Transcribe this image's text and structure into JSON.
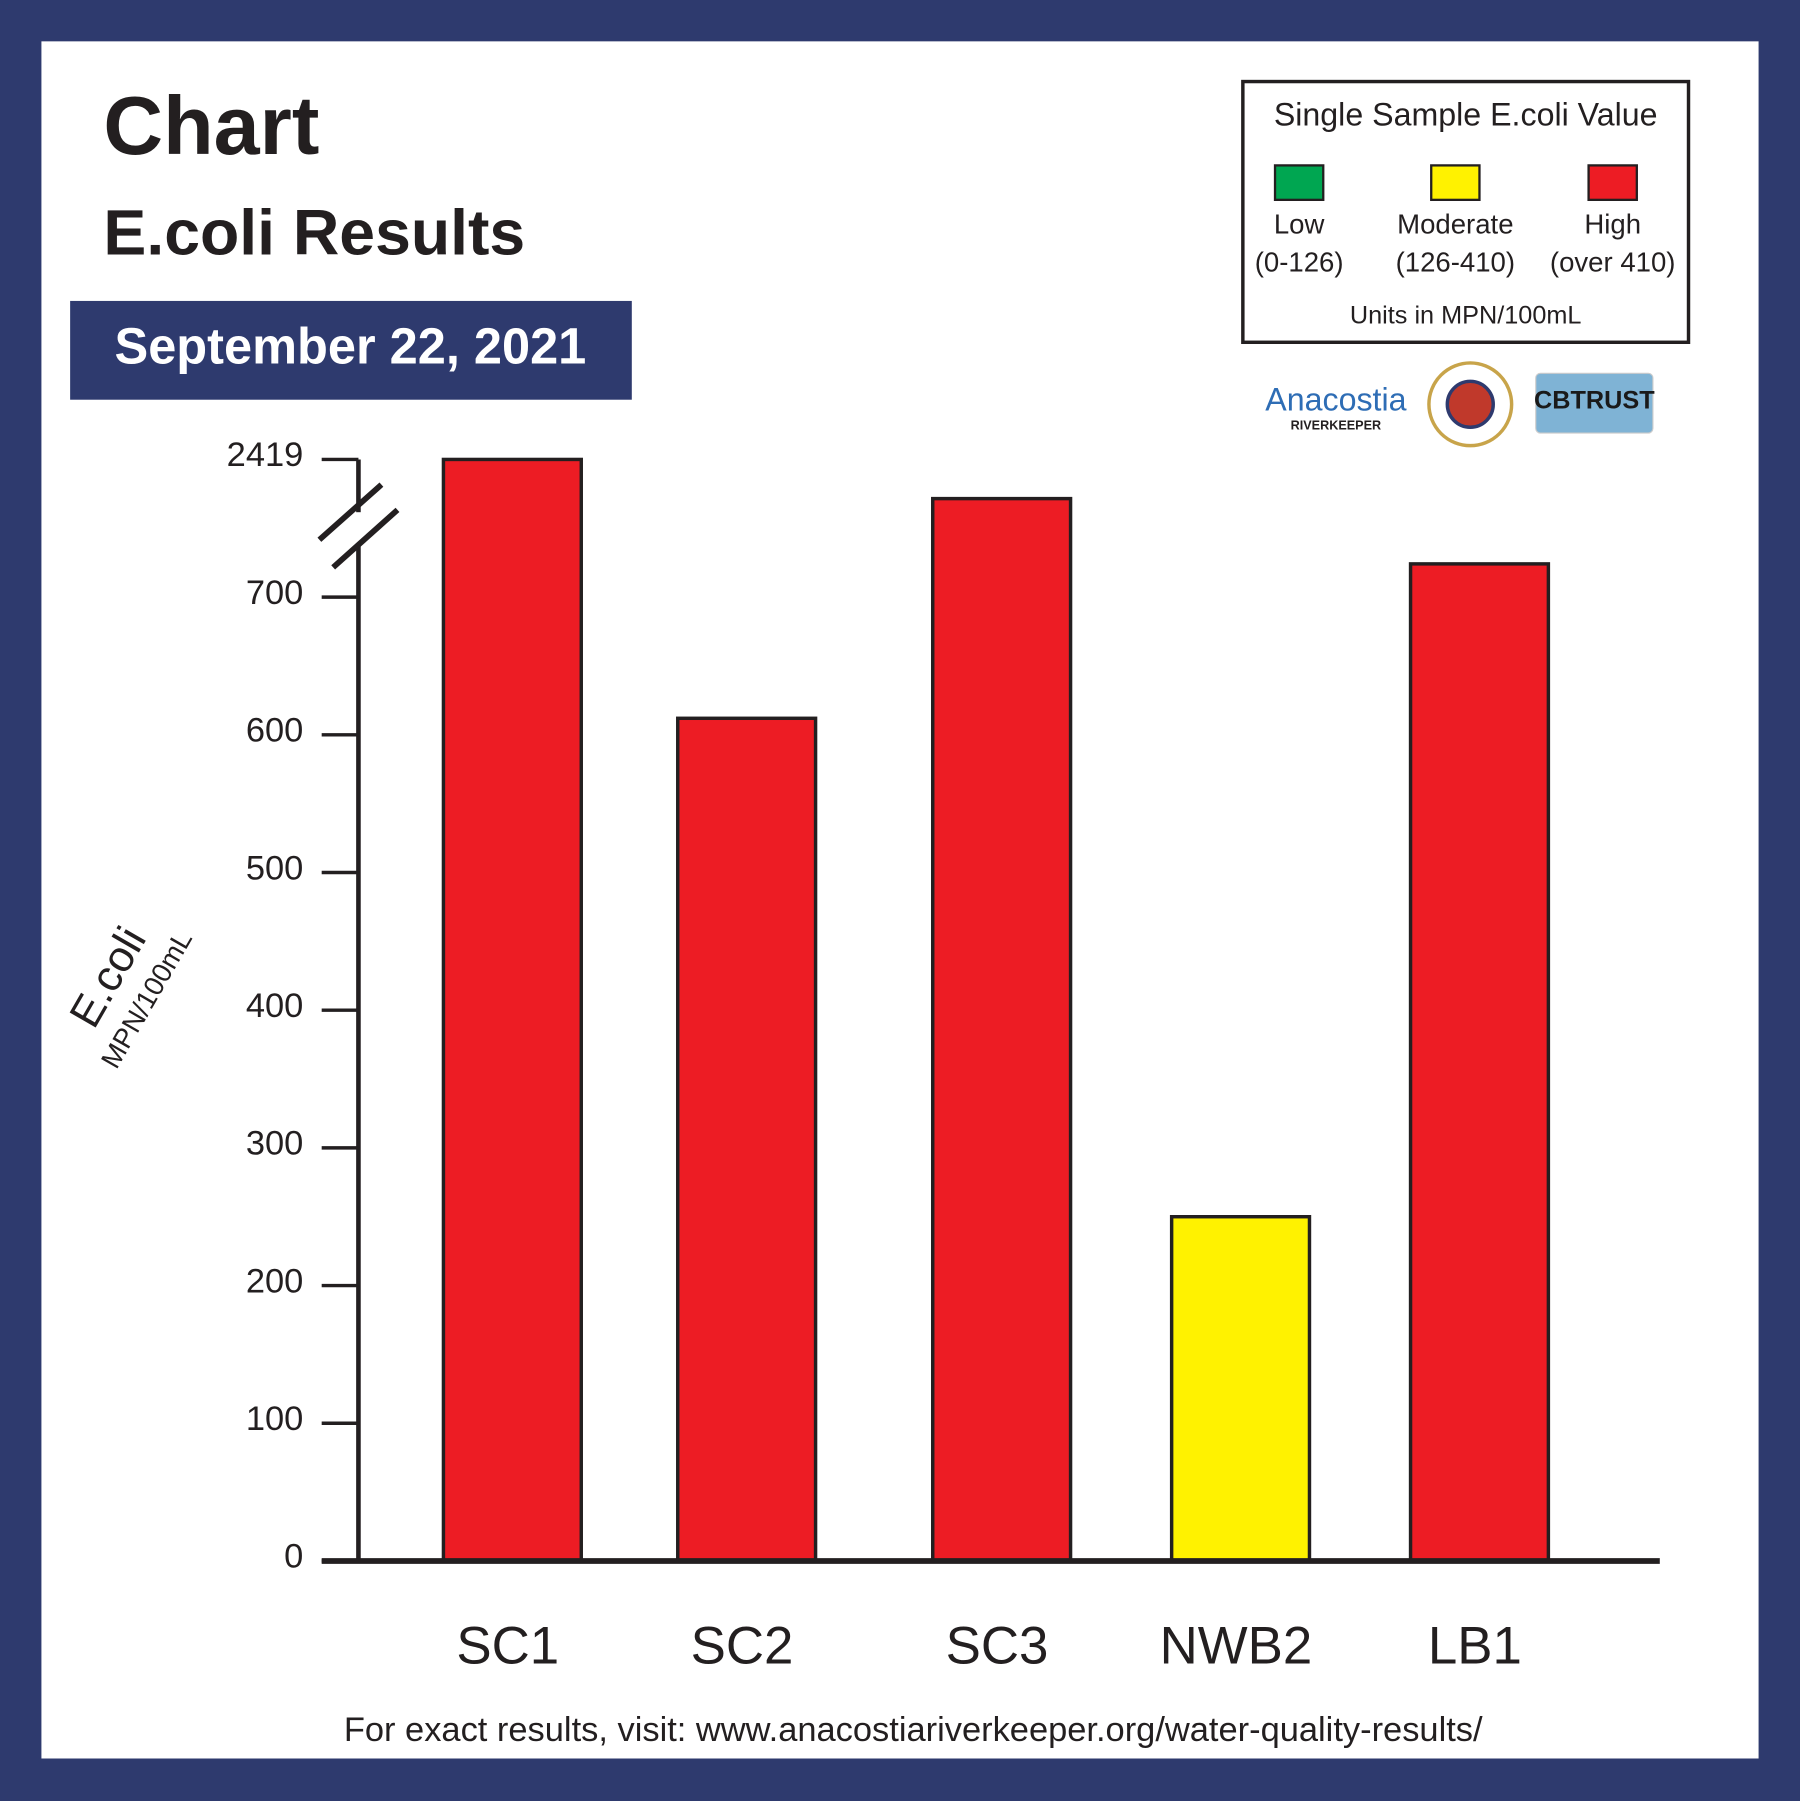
{
  "header": {
    "title": "Chart",
    "subtitle": "E.coli Results",
    "date": "September 22, 2021"
  },
  "legend": {
    "title": "Single Sample E.coli Value",
    "items": [
      {
        "label": "Low",
        "range": "(0-126)",
        "color": "#00a651"
      },
      {
        "label": "Moderate",
        "range": "(126-410)",
        "color": "#fff200"
      },
      {
        "label": "High",
        "range": "(over 410)",
        "color": "#ed1c24"
      }
    ],
    "units": "Units in MPN/100mL"
  },
  "logos": [
    "Anacostia",
    "RIVERKEEPER",
    "CBTRUST"
  ],
  "chart_data": {
    "type": "bar",
    "categories": [
      "SC1",
      "SC2",
      "SC3",
      "NWB2",
      "LB1"
    ],
    "values": [
      2419,
      612,
      1930,
      250,
      1115
    ],
    "colors": [
      "#ed1c24",
      "#ed1c24",
      "#ed1c24",
      "#fff200",
      "#ed1c24"
    ],
    "ylim": [
      0,
      2419
    ],
    "yticks": [
      0,
      100,
      200,
      300,
      400,
      500,
      600,
      700,
      2419
    ],
    "axis_break": true,
    "ylabel": "E.coli",
    "yunit": "MPN/100mL"
  },
  "footer": "For exact results, visit: www.anacostiariverkeeper.org/water-quality-results/"
}
